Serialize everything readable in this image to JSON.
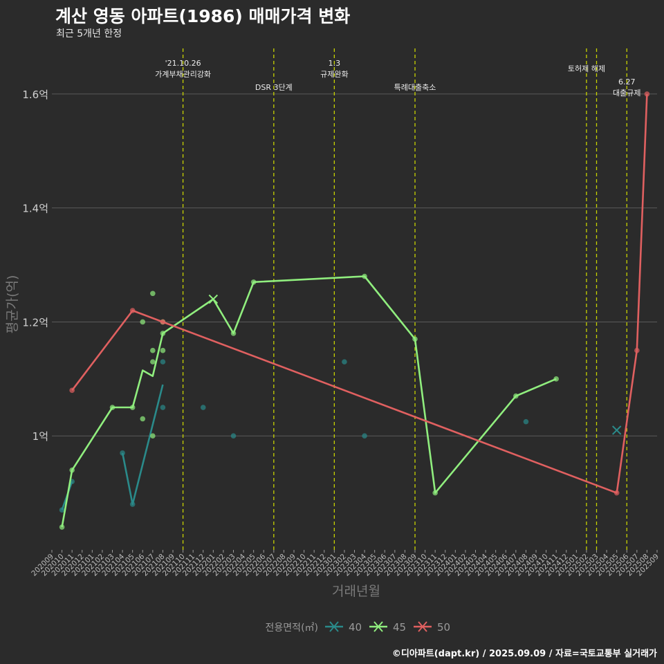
{
  "header": {
    "title": "계산 영동 아파트(1986) 매매가격 변화",
    "subtitle": "최근 5개년 한정"
  },
  "footer": {
    "caption": "©디아파트(dapt.kr) / 2025.09.09 / 자료=국토교통부 실거래가"
  },
  "colors": {
    "background": "#2b2b2b",
    "grid": "#5a5a5a",
    "event_line": "#c8d400",
    "s40": "#2a8a8a",
    "s45": "#90ee7e",
    "s50": "#e06060"
  },
  "chart_data": {
    "type": "line",
    "xlabel": "거래년월",
    "ylabel": "평균가(억)",
    "legend_title": "전용면적(㎡)",
    "legend_position": "bottom",
    "grid": true,
    "ylim": [
      0.8,
      1.68
    ],
    "x_start": "2020-09",
    "x_end": "2025-09",
    "x_ticks": [
      "202009",
      "202010",
      "202011",
      "202012",
      "202101",
      "202102",
      "202103",
      "202104",
      "202105",
      "202106",
      "202107",
      "202108",
      "202109",
      "202110",
      "202111",
      "202112",
      "202201",
      "202202",
      "202203",
      "202204",
      "202205",
      "202206",
      "202207",
      "202208",
      "202209",
      "202210",
      "202211",
      "202212",
      "202301",
      "202302",
      "202303",
      "202304",
      "202305",
      "202306",
      "202307",
      "202308",
      "202309",
      "202310",
      "202311",
      "202312",
      "202401",
      "202402",
      "202403",
      "202404",
      "202405",
      "202406",
      "202407",
      "202408",
      "202409",
      "202410",
      "202411",
      "202412",
      "202501",
      "202502",
      "202503",
      "202504",
      "202505",
      "202506",
      "202507",
      "202508",
      "202509"
    ],
    "y_ticks": [
      {
        "value": 1.0,
        "label": "1억"
      },
      {
        "value": 1.2,
        "label": "1.2억"
      },
      {
        "value": 1.4,
        "label": "1.4억"
      },
      {
        "value": 1.6,
        "label": "1.6억"
      }
    ],
    "events": [
      {
        "date": "2021-10",
        "lines": [
          "'21.10.26",
          "가계부채관리강화"
        ],
        "level": "high"
      },
      {
        "date": "2022-07",
        "lines": [
          "DSR 3단계"
        ],
        "level": "low"
      },
      {
        "date": "2023-01",
        "lines": [
          "1.3",
          "규제완화"
        ],
        "level": "high"
      },
      {
        "date": "2023-09",
        "lines": [
          "특례대출축소"
        ],
        "level": "low"
      },
      {
        "date": "2025-02",
        "lines": [
          "토허제 해제"
        ],
        "level": "mid"
      },
      {
        "date": "2025-03",
        "lines": [],
        "level": "none"
      },
      {
        "date": "2025-06",
        "lines": [
          "6.27",
          "대출규제"
        ],
        "level": "mid2"
      }
    ],
    "series": [
      {
        "name": "40",
        "line": [
          [
            "2020-10",
            0.87
          ],
          [
            "2020-11",
            0.92
          ]
        ],
        "line2": [
          [
            "2021-04",
            0.97
          ],
          [
            "2021-05",
            0.88
          ],
          [
            "2021-08",
            1.09
          ]
        ],
        "points": [
          [
            "2020-10",
            0.87
          ],
          [
            "2020-11",
            0.92
          ],
          [
            "2021-04",
            0.97
          ],
          [
            "2021-05",
            0.88
          ],
          [
            "2021-08",
            1.13
          ],
          [
            "2021-08",
            1.05
          ],
          [
            "2021-12",
            1.05
          ],
          [
            "2022-03",
            1.0
          ],
          [
            "2023-02",
            1.13
          ],
          [
            "2023-04",
            1.0
          ],
          [
            "2024-08",
            1.025
          ]
        ],
        "markers": [
          [
            "2025-05",
            1.01
          ]
        ]
      },
      {
        "name": "45",
        "line": [
          [
            "2020-10",
            0.84
          ],
          [
            "2020-11",
            0.94
          ],
          [
            "2021-03",
            1.05
          ],
          [
            "2021-05",
            1.05
          ],
          [
            "2021-06",
            1.115
          ],
          [
            "2021-07",
            1.105
          ],
          [
            "2021-08",
            1.18
          ],
          [
            "2022-01",
            1.24
          ],
          [
            "2022-03",
            1.18
          ],
          [
            "2022-05",
            1.27
          ],
          [
            "2023-04",
            1.28
          ],
          [
            "2023-09",
            1.17
          ],
          [
            "2023-11",
            0.9
          ],
          [
            "2024-07",
            1.07
          ],
          [
            "2024-11",
            1.1
          ]
        ],
        "points": [
          [
            "2020-10",
            0.84
          ],
          [
            "2020-11",
            0.94
          ],
          [
            "2021-03",
            1.05
          ],
          [
            "2021-05",
            1.05
          ],
          [
            "2021-06",
            1.2
          ],
          [
            "2021-06",
            1.03
          ],
          [
            "2021-07",
            1.25
          ],
          [
            "2021-07",
            1.15
          ],
          [
            "2021-07",
            1.13
          ],
          [
            "2021-07",
            1.0
          ],
          [
            "2021-08",
            1.2
          ],
          [
            "2021-08",
            1.15
          ],
          [
            "2021-08",
            1.18
          ],
          [
            "2022-03",
            1.18
          ],
          [
            "2022-05",
            1.27
          ],
          [
            "2023-04",
            1.28
          ],
          [
            "2023-09",
            1.17
          ],
          [
            "2023-11",
            0.9
          ],
          [
            "2024-07",
            1.07
          ],
          [
            "2024-11",
            1.1
          ]
        ],
        "markers": [
          [
            "2022-01",
            1.24
          ]
        ]
      },
      {
        "name": "50",
        "line": [
          [
            "2020-11",
            1.08
          ],
          [
            "2021-05",
            1.22
          ],
          [
            "2025-05",
            0.9
          ],
          [
            "2025-07",
            1.15
          ],
          [
            "2025-08",
            1.6
          ]
        ],
        "points": [
          [
            "2020-11",
            1.08
          ],
          [
            "2021-05",
            1.22
          ],
          [
            "2021-08",
            1.2
          ],
          [
            "2025-05",
            0.9
          ],
          [
            "2025-07",
            1.15
          ],
          [
            "2025-08",
            1.6
          ]
        ],
        "markers": []
      }
    ]
  }
}
